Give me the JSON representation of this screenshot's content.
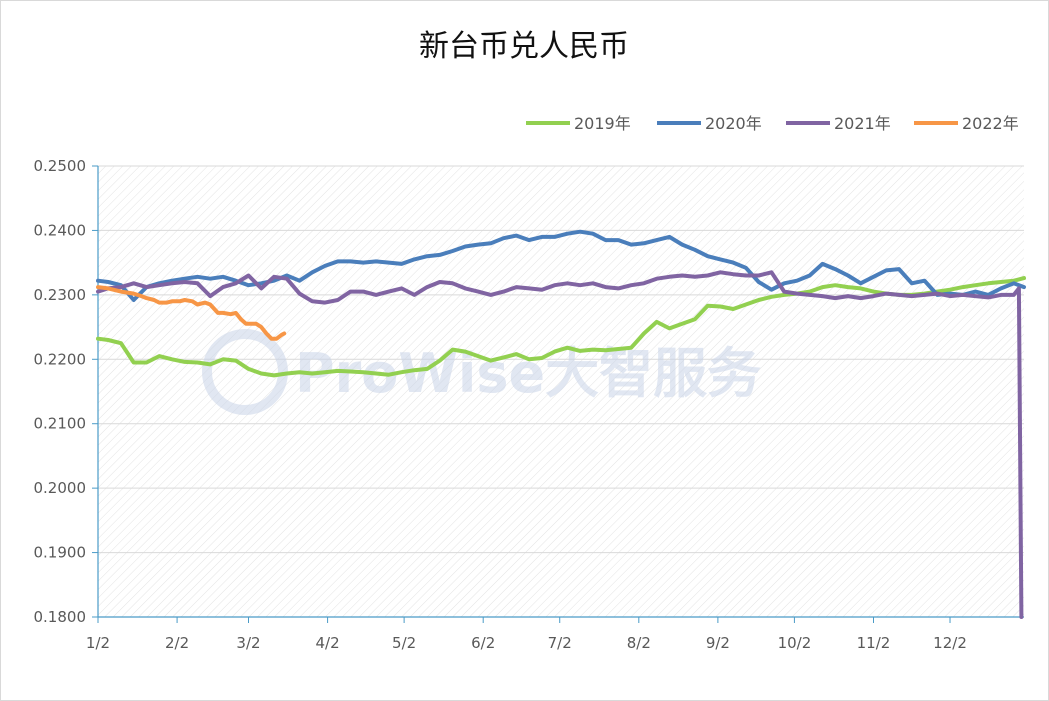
{
  "chart_data": {
    "type": "line",
    "title": "新台币兑人民币",
    "xlabel": "",
    "ylabel": "",
    "ylim": [
      0.18,
      0.25
    ],
    "yticks": [
      "0.2500",
      "0.2400",
      "0.2300",
      "0.2200",
      "0.2100",
      "0.2000",
      "0.1900",
      "0.1800"
    ],
    "xticks": [
      "1/2",
      "2/2",
      "3/2",
      "4/2",
      "5/2",
      "6/2",
      "7/2",
      "8/2",
      "9/2",
      "10/2",
      "11/2",
      "12/2"
    ],
    "xrange_days": [
      1,
      364
    ],
    "grid": true,
    "legend_position": "top-right",
    "watermark": "ProWise大智服务",
    "series": [
      {
        "name": "2019年",
        "color": "#92d050",
        "points": [
          [
            1,
            0.2232
          ],
          [
            5,
            0.223
          ],
          [
            10,
            0.2225
          ],
          [
            15,
            0.2195
          ],
          [
            20,
            0.2195
          ],
          [
            25,
            0.2205
          ],
          [
            30,
            0.22
          ],
          [
            35,
            0.2196
          ],
          [
            40,
            0.2195
          ],
          [
            45,
            0.2192
          ],
          [
            50,
            0.22
          ],
          [
            55,
            0.2198
          ],
          [
            60,
            0.2185
          ],
          [
            65,
            0.2178
          ],
          [
            70,
            0.2175
          ],
          [
            75,
            0.2178
          ],
          [
            80,
            0.218
          ],
          [
            85,
            0.2178
          ],
          [
            90,
            0.218
          ],
          [
            95,
            0.2182
          ],
          [
            100,
            0.2181
          ],
          [
            105,
            0.218
          ],
          [
            110,
            0.2178
          ],
          [
            115,
            0.2176
          ],
          [
            120,
            0.218
          ],
          [
            125,
            0.2183
          ],
          [
            130,
            0.2185
          ],
          [
            135,
            0.2198
          ],
          [
            140,
            0.2215
          ],
          [
            145,
            0.2212
          ],
          [
            150,
            0.2205
          ],
          [
            155,
            0.2198
          ],
          [
            160,
            0.2203
          ],
          [
            165,
            0.2208
          ],
          [
            170,
            0.22
          ],
          [
            175,
            0.2202
          ],
          [
            180,
            0.2212
          ],
          [
            185,
            0.2218
          ],
          [
            190,
            0.2213
          ],
          [
            195,
            0.2215
          ],
          [
            200,
            0.2214
          ],
          [
            205,
            0.2216
          ],
          [
            210,
            0.2218
          ],
          [
            215,
            0.224
          ],
          [
            220,
            0.2258
          ],
          [
            225,
            0.2248
          ],
          [
            230,
            0.2255
          ],
          [
            235,
            0.2262
          ],
          [
            240,
            0.2283
          ],
          [
            245,
            0.2282
          ],
          [
            250,
            0.2278
          ],
          [
            255,
            0.2285
          ],
          [
            260,
            0.2292
          ],
          [
            265,
            0.2297
          ],
          [
            270,
            0.23
          ],
          [
            275,
            0.2302
          ],
          [
            280,
            0.2305
          ],
          [
            285,
            0.2312
          ],
          [
            290,
            0.2315
          ],
          [
            295,
            0.2312
          ],
          [
            300,
            0.231
          ],
          [
            305,
            0.2305
          ],
          [
            310,
            0.2302
          ],
          [
            315,
            0.23
          ],
          [
            320,
            0.23
          ],
          [
            325,
            0.2302
          ],
          [
            330,
            0.2305
          ],
          [
            335,
            0.2308
          ],
          [
            340,
            0.2312
          ],
          [
            345,
            0.2315
          ],
          [
            350,
            0.2318
          ],
          [
            355,
            0.232
          ],
          [
            360,
            0.2322
          ],
          [
            364,
            0.2326
          ]
        ]
      },
      {
        "name": "2020年",
        "color": "#4a7ebb",
        "points": [
          [
            1,
            0.2322
          ],
          [
            5,
            0.232
          ],
          [
            10,
            0.2315
          ],
          [
            15,
            0.2292
          ],
          [
            20,
            0.2312
          ],
          [
            25,
            0.2318
          ],
          [
            30,
            0.2322
          ],
          [
            35,
            0.2325
          ],
          [
            40,
            0.2328
          ],
          [
            45,
            0.2325
          ],
          [
            50,
            0.2328
          ],
          [
            55,
            0.2322
          ],
          [
            60,
            0.2315
          ],
          [
            65,
            0.2318
          ],
          [
            70,
            0.2322
          ],
          [
            75,
            0.233
          ],
          [
            80,
            0.2322
          ],
          [
            85,
            0.2335
          ],
          [
            90,
            0.2345
          ],
          [
            95,
            0.2352
          ],
          [
            100,
            0.2352
          ],
          [
            105,
            0.235
          ],
          [
            110,
            0.2352
          ],
          [
            115,
            0.235
          ],
          [
            120,
            0.2348
          ],
          [
            125,
            0.2355
          ],
          [
            130,
            0.236
          ],
          [
            135,
            0.2362
          ],
          [
            140,
            0.2368
          ],
          [
            145,
            0.2375
          ],
          [
            150,
            0.2378
          ],
          [
            155,
            0.238
          ],
          [
            160,
            0.2388
          ],
          [
            165,
            0.2392
          ],
          [
            170,
            0.2385
          ],
          [
            175,
            0.239
          ],
          [
            180,
            0.239
          ],
          [
            185,
            0.2395
          ],
          [
            190,
            0.2398
          ],
          [
            195,
            0.2395
          ],
          [
            200,
            0.2385
          ],
          [
            205,
            0.2385
          ],
          [
            210,
            0.2378
          ],
          [
            215,
            0.238
          ],
          [
            220,
            0.2385
          ],
          [
            225,
            0.239
          ],
          [
            230,
            0.2378
          ],
          [
            235,
            0.237
          ],
          [
            240,
            0.236
          ],
          [
            245,
            0.2355
          ],
          [
            250,
            0.235
          ],
          [
            255,
            0.2342
          ],
          [
            260,
            0.232
          ],
          [
            265,
            0.2308
          ],
          [
            270,
            0.2318
          ],
          [
            275,
            0.2322
          ],
          [
            280,
            0.233
          ],
          [
            285,
            0.2348
          ],
          [
            290,
            0.234
          ],
          [
            295,
            0.233
          ],
          [
            300,
            0.2318
          ],
          [
            305,
            0.2328
          ],
          [
            310,
            0.2338
          ],
          [
            315,
            0.234
          ],
          [
            320,
            0.2318
          ],
          [
            325,
            0.2322
          ],
          [
            330,
            0.23
          ],
          [
            335,
            0.2302
          ],
          [
            340,
            0.23
          ],
          [
            345,
            0.2305
          ],
          [
            350,
            0.23
          ],
          [
            355,
            0.231
          ],
          [
            360,
            0.2318
          ],
          [
            364,
            0.2312
          ]
        ]
      },
      {
        "name": "2021年",
        "color": "#8064a2",
        "points": [
          [
            1,
            0.2305
          ],
          [
            5,
            0.231
          ],
          [
            10,
            0.2312
          ],
          [
            15,
            0.2318
          ],
          [
            20,
            0.2312
          ],
          [
            25,
            0.2315
          ],
          [
            30,
            0.2318
          ],
          [
            35,
            0.232
          ],
          [
            40,
            0.2318
          ],
          [
            45,
            0.2298
          ],
          [
            50,
            0.2312
          ],
          [
            55,
            0.2318
          ],
          [
            60,
            0.233
          ],
          [
            65,
            0.231
          ],
          [
            70,
            0.2328
          ],
          [
            75,
            0.2325
          ],
          [
            80,
            0.2302
          ],
          [
            85,
            0.229
          ],
          [
            90,
            0.2288
          ],
          [
            95,
            0.2292
          ],
          [
            100,
            0.2305
          ],
          [
            105,
            0.2305
          ],
          [
            110,
            0.23
          ],
          [
            115,
            0.2305
          ],
          [
            120,
            0.231
          ],
          [
            125,
            0.23
          ],
          [
            130,
            0.2312
          ],
          [
            135,
            0.232
          ],
          [
            140,
            0.2318
          ],
          [
            145,
            0.231
          ],
          [
            150,
            0.2305
          ],
          [
            155,
            0.23
          ],
          [
            160,
            0.2305
          ],
          [
            165,
            0.2312
          ],
          [
            170,
            0.231
          ],
          [
            175,
            0.2308
          ],
          [
            180,
            0.2315
          ],
          [
            185,
            0.2318
          ],
          [
            190,
            0.2315
          ],
          [
            195,
            0.2318
          ],
          [
            200,
            0.2312
          ],
          [
            205,
            0.231
          ],
          [
            210,
            0.2315
          ],
          [
            215,
            0.2318
          ],
          [
            220,
            0.2325
          ],
          [
            225,
            0.2328
          ],
          [
            230,
            0.233
          ],
          [
            235,
            0.2328
          ],
          [
            240,
            0.233
          ],
          [
            245,
            0.2335
          ],
          [
            250,
            0.2332
          ],
          [
            255,
            0.233
          ],
          [
            260,
            0.233
          ],
          [
            265,
            0.2335
          ],
          [
            270,
            0.2305
          ],
          [
            275,
            0.2302
          ],
          [
            280,
            0.23
          ],
          [
            285,
            0.2298
          ],
          [
            290,
            0.2295
          ],
          [
            295,
            0.2298
          ],
          [
            300,
            0.2295
          ],
          [
            305,
            0.2298
          ],
          [
            310,
            0.2302
          ],
          [
            315,
            0.23
          ],
          [
            320,
            0.2298
          ],
          [
            325,
            0.23
          ],
          [
            330,
            0.2302
          ],
          [
            335,
            0.2298
          ],
          [
            340,
            0.23
          ],
          [
            345,
            0.2298
          ],
          [
            350,
            0.2296
          ],
          [
            355,
            0.23
          ],
          [
            360,
            0.23
          ],
          [
            362,
            0.231
          ],
          [
            363,
            0.18
          ]
        ]
      },
      {
        "name": "2022年",
        "color": "#f79646",
        "points": [
          [
            1,
            0.2312
          ],
          [
            5,
            0.231
          ],
          [
            10,
            0.2305
          ],
          [
            15,
            0.2302
          ],
          [
            18,
            0.2298
          ],
          [
            20,
            0.2295
          ],
          [
            23,
            0.2292
          ],
          [
            25,
            0.2288
          ],
          [
            28,
            0.2288
          ],
          [
            30,
            0.229
          ],
          [
            33,
            0.229
          ],
          [
            35,
            0.2292
          ],
          [
            38,
            0.229
          ],
          [
            40,
            0.2285
          ],
          [
            43,
            0.2288
          ],
          [
            45,
            0.2285
          ],
          [
            48,
            0.2272
          ],
          [
            50,
            0.2272
          ],
          [
            53,
            0.227
          ],
          [
            55,
            0.2272
          ],
          [
            57,
            0.2262
          ],
          [
            59,
            0.2255
          ],
          [
            61,
            0.2255
          ],
          [
            63,
            0.2255
          ],
          [
            65,
            0.225
          ],
          [
            67,
            0.224
          ],
          [
            69,
            0.2232
          ],
          [
            71,
            0.2232
          ],
          [
            73,
            0.2238
          ],
          [
            74,
            0.224
          ]
        ]
      }
    ]
  }
}
